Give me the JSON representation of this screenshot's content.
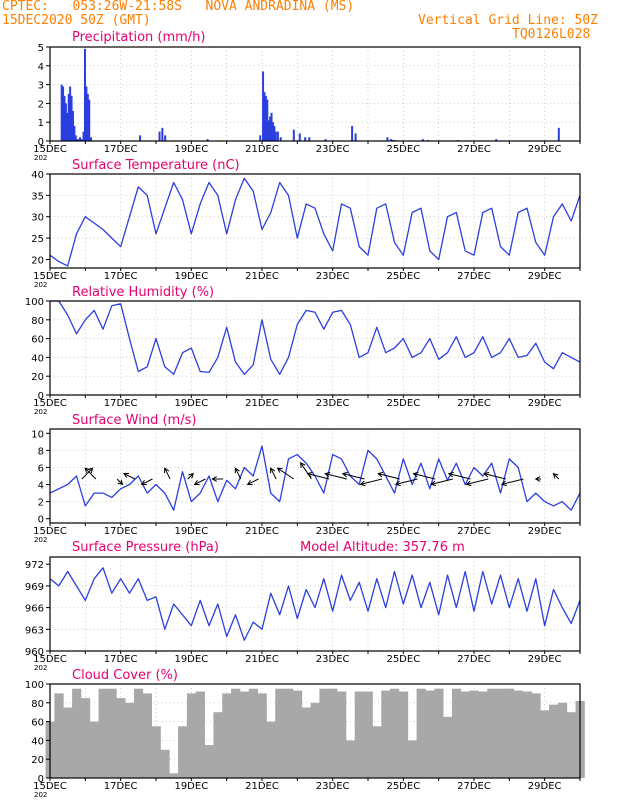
{
  "header": {
    "line1": "CPTEC:   053:26W-21:58S   NOVA ANDRADINA (MS)",
    "line2_left": "15DEC2020 50Z (GMT)",
    "line2_right": "Vertical Grid Line: 50Z",
    "line3_right": "TQ0126L028"
  },
  "colors": {
    "header": "#ff7f00",
    "title": "#e8006e",
    "series": "#2b3fe0",
    "cloud": "#a8a8a8",
    "frame": "#000000",
    "grid": "#b0b0b0"
  },
  "x_ticks": [
    "15DEC",
    "17DEC",
    "19DEC",
    "21DEC",
    "23DEC",
    "25DEC",
    "27DEC",
    "29DEC"
  ],
  "year_stub": "202",
  "panels": {
    "precip": {
      "title": "Precipitation (mm/h)"
    },
    "temp": {
      "title": "Surface Temperature (nC)"
    },
    "rh": {
      "title": "Relative Humidity (%)"
    },
    "wind": {
      "title": "Surface Wind (m/s)"
    },
    "press": {
      "title": "Surface Pressure (hPa)",
      "extra": "Model Altitude: 357.76 m"
    },
    "cloud": {
      "title": "Cloud Cover (%)"
    }
  },
  "chart_data": [
    {
      "type": "bar",
      "title": "Precipitation (mm/h)",
      "x": [
        0.33,
        0.37,
        0.41,
        0.45,
        0.49,
        0.53,
        0.57,
        0.61,
        0.65,
        0.69,
        0.73,
        0.77,
        0.81,
        0.85,
        0.89,
        0.95,
        0.99,
        1.03,
        1.07,
        1.11,
        1.16,
        2.55,
        3.1,
        3.18,
        3.26,
        4.46,
        5.95,
        6.03,
        6.07,
        6.11,
        6.15,
        6.19,
        6.23,
        6.27,
        6.31,
        6.35,
        6.39,
        6.45,
        6.53,
        6.9,
        7.07,
        7.22,
        7.34,
        7.8,
        8.55,
        8.65,
        9.55,
        9.65,
        9.7,
        9.75,
        10.55,
        10.7,
        11.55,
        12.63,
        14.4
      ],
      "values": [
        3.0,
        2.9,
        2.4,
        2.0,
        1.5,
        2.5,
        2.9,
        2.4,
        1.6,
        0.8,
        0.3,
        0.1,
        0.1,
        0.2,
        0.1,
        0.5,
        4.9,
        2.9,
        2.5,
        2.2,
        0.2,
        0.3,
        0.5,
        0.7,
        0.3,
        0.1,
        0.3,
        3.7,
        2.6,
        2.4,
        2.2,
        1.1,
        1.3,
        1.5,
        1.0,
        0.8,
        0.5,
        0.5,
        0.2,
        0.6,
        0.4,
        0.2,
        0.2,
        0.1,
        0.8,
        0.4,
        0.2,
        0.1,
        0.05,
        0.05,
        0.1,
        0.05,
        0.05,
        0.1,
        0.7
      ],
      "xlabel": "",
      "ylabel": "",
      "ylim": [
        0,
        5
      ],
      "xlim": [
        0,
        15
      ],
      "yticks": [
        0,
        1,
        2,
        3,
        4,
        5
      ]
    },
    {
      "type": "line",
      "title": "Surface Temperature (nC)",
      "x": [
        0,
        0.25,
        0.5,
        0.75,
        1,
        1.25,
        1.5,
        1.75,
        2,
        2.25,
        2.5,
        2.75,
        3,
        3.25,
        3.5,
        3.75,
        4,
        4.25,
        4.5,
        4.75,
        5,
        5.25,
        5.5,
        5.75,
        6,
        6.25,
        6.5,
        6.75,
        7,
        7.25,
        7.5,
        7.75,
        8,
        8.25,
        8.5,
        8.75,
        9,
        9.25,
        9.5,
        9.75,
        10,
        10.25,
        10.5,
        10.75,
        11,
        11.25,
        11.5,
        11.75,
        12,
        12.25,
        12.5,
        12.75,
        13,
        13.25,
        13.5,
        13.75,
        14,
        14.25,
        14.5,
        14.75,
        15
      ],
      "y": [
        21,
        19.5,
        18.5,
        26,
        30,
        28.5,
        27,
        25,
        23,
        30,
        37,
        35,
        26,
        32,
        38,
        34,
        26,
        33,
        38,
        35,
        26,
        34,
        39,
        36,
        27,
        31,
        38,
        35,
        25,
        33,
        32,
        26,
        22,
        33,
        32,
        23,
        21,
        32,
        33,
        24,
        21,
        31,
        32,
        22,
        20,
        30,
        31,
        22,
        21,
        31,
        32,
        23,
        21,
        31,
        32,
        24,
        21,
        30,
        33,
        29,
        35
      ],
      "xlabel": "",
      "ylabel": "",
      "ylim": [
        18,
        40
      ],
      "xlim": [
        0,
        15
      ],
      "yticks": [
        20,
        25,
        30,
        35,
        40
      ]
    },
    {
      "type": "line",
      "title": "Relative Humidity (%)",
      "x": [
        0,
        0.25,
        0.5,
        0.75,
        1,
        1.25,
        1.5,
        1.75,
        2,
        2.25,
        2.5,
        2.75,
        3,
        3.25,
        3.5,
        3.75,
        4,
        4.25,
        4.5,
        4.75,
        5,
        5.25,
        5.5,
        5.75,
        6,
        6.25,
        6.5,
        6.75,
        7,
        7.25,
        7.5,
        7.75,
        8,
        8.25,
        8.5,
        8.75,
        9,
        9.25,
        9.5,
        9.75,
        10,
        10.25,
        10.5,
        10.75,
        11,
        11.25,
        11.5,
        11.75,
        12,
        12.25,
        12.5,
        12.75,
        13,
        13.25,
        13.5,
        13.75,
        14,
        14.25,
        14.5,
        14.75,
        15
      ],
      "y": [
        100,
        100,
        85,
        65,
        80,
        90,
        70,
        95,
        97,
        60,
        25,
        30,
        60,
        30,
        22,
        45,
        50,
        25,
        24,
        40,
        72,
        35,
        22,
        32,
        80,
        38,
        22,
        40,
        75,
        90,
        88,
        70,
        88,
        90,
        75,
        40,
        45,
        72,
        45,
        50,
        60,
        40,
        45,
        60,
        38,
        45,
        62,
        40,
        45,
        62,
        40,
        45,
        60,
        40,
        42,
        55,
        35,
        28,
        45,
        40,
        35
      ],
      "xlabel": "",
      "ylabel": "",
      "ylim": [
        0,
        100
      ],
      "xlim": [
        0,
        15
      ],
      "yticks": [
        0,
        20,
        40,
        60,
        80,
        100
      ]
    },
    {
      "type": "line",
      "title": "Surface Wind (m/s)",
      "x": [
        0,
        0.25,
        0.5,
        0.75,
        1,
        1.25,
        1.5,
        1.75,
        2,
        2.25,
        2.5,
        2.75,
        3,
        3.25,
        3.5,
        3.75,
        4,
        4.25,
        4.5,
        4.75,
        5,
        5.25,
        5.5,
        5.75,
        6,
        6.25,
        6.5,
        6.75,
        7,
        7.25,
        7.5,
        7.75,
        8,
        8.25,
        8.5,
        8.75,
        9,
        9.25,
        9.5,
        9.75,
        10,
        10.25,
        10.5,
        10.75,
        11,
        11.25,
        11.5,
        11.75,
        12,
        12.25,
        12.5,
        12.75,
        13,
        13.25,
        13.5,
        13.75,
        14,
        14.25,
        14.5,
        14.75,
        15
      ],
      "y": [
        3,
        3.5,
        4,
        5,
        1.5,
        3,
        3,
        2.5,
        3.5,
        4,
        5,
        3,
        4,
        3,
        1,
        5.5,
        2,
        3,
        5,
        2,
        4.5,
        3.5,
        6,
        5,
        8.5,
        3,
        2,
        7,
        7.5,
        6.5,
        5,
        3,
        7.5,
        7,
        5,
        4,
        8,
        7,
        5,
        3,
        7,
        4,
        6.5,
        3.5,
        7,
        4.5,
        6.5,
        4,
        6,
        5,
        6.5,
        3,
        7,
        6,
        2,
        3,
        2,
        1.5,
        2,
        1,
        3
      ],
      "xlabel": "",
      "ylabel": "",
      "ylim": [
        -0.5,
        10.5
      ],
      "xlim": [
        0,
        15
      ],
      "yticks": [
        0,
        2,
        4,
        6,
        8,
        10
      ]
    },
    {
      "type": "line",
      "title": "Surface Pressure (hPa)",
      "x": [
        0,
        0.25,
        0.5,
        0.75,
        1,
        1.25,
        1.5,
        1.75,
        2,
        2.25,
        2.5,
        2.75,
        3,
        3.25,
        3.5,
        3.75,
        4,
        4.25,
        4.5,
        4.75,
        5,
        5.25,
        5.5,
        5.75,
        6,
        6.25,
        6.5,
        6.75,
        7,
        7.25,
        7.5,
        7.75,
        8,
        8.25,
        8.5,
        8.75,
        9,
        9.25,
        9.5,
        9.75,
        10,
        10.25,
        10.5,
        10.75,
        11,
        11.25,
        11.5,
        11.75,
        12,
        12.25,
        12.5,
        12.75,
        13,
        13.25,
        13.5,
        13.75,
        14,
        14.25,
        14.5,
        14.75,
        15
      ],
      "y": [
        970,
        969,
        971,
        969,
        967,
        970,
        971.5,
        968,
        970,
        968,
        970,
        967,
        967.5,
        963,
        966.5,
        965,
        963.5,
        967,
        963.5,
        966.5,
        962,
        965,
        961.5,
        964,
        963,
        968,
        965,
        969,
        964.5,
        968.5,
        966,
        970,
        965.5,
        970.5,
        967,
        969.5,
        965.5,
        970,
        966,
        971,
        966.5,
        970.5,
        966,
        969.5,
        965,
        970.5,
        966,
        971,
        965.5,
        971,
        966.5,
        970.5,
        966,
        970,
        965.5,
        970,
        963.5,
        968.5,
        966,
        963.8,
        967
      ],
      "xlabel": "",
      "ylabel": "",
      "ylim": [
        960,
        973
      ],
      "xlim": [
        0,
        15
      ],
      "yticks": [
        960,
        963,
        966,
        969,
        972
      ]
    },
    {
      "type": "bar",
      "title": "Cloud Cover (%)",
      "x": [
        0,
        0.25,
        0.5,
        0.75,
        1,
        1.25,
        1.5,
        1.75,
        2,
        2.25,
        2.5,
        2.75,
        3,
        3.25,
        3.5,
        3.75,
        4,
        4.25,
        4.5,
        4.75,
        5,
        5.25,
        5.5,
        5.75,
        6,
        6.25,
        6.5,
        6.75,
        7,
        7.25,
        7.5,
        7.75,
        8,
        8.25,
        8.5,
        8.75,
        9,
        9.25,
        9.5,
        9.75,
        10,
        10.25,
        10.5,
        10.75,
        11,
        11.25,
        11.5,
        11.75,
        12,
        12.25,
        12.5,
        12.75,
        13,
        13.25,
        13.5,
        13.75,
        14,
        14.25,
        14.5,
        14.75,
        15
      ],
      "values": [
        60,
        90,
        75,
        95,
        85,
        60,
        95,
        95,
        85,
        80,
        95,
        90,
        55,
        30,
        5,
        55,
        90,
        92,
        35,
        70,
        90,
        95,
        92,
        95,
        90,
        60,
        95,
        95,
        93,
        75,
        80,
        95,
        95,
        92,
        40,
        92,
        92,
        55,
        93,
        95,
        92,
        40,
        95,
        93,
        95,
        65,
        95,
        92,
        93,
        92,
        95,
        95,
        95,
        93,
        92,
        90,
        72,
        78,
        80,
        70,
        82
      ],
      "xlabel": "",
      "ylabel": "",
      "ylim": [
        0,
        100
      ],
      "xlim": [
        0,
        15
      ],
      "yticks": [
        0,
        20,
        40,
        60,
        80,
        100
      ]
    }
  ],
  "wind_vectors": {
    "x": [
      0.9,
      1.3,
      1.9,
      2.4,
      2.9,
      3.4,
      3.9,
      4.4,
      4.9,
      5.4,
      5.9,
      6.4,
      6.9,
      7.4,
      7.9,
      8.4,
      8.9,
      9.4,
      9.9,
      10.4,
      10.9,
      11.4,
      11.9,
      12.4,
      12.9,
      13.4,
      13.9,
      14.4
    ],
    "u": [
      0.6,
      -0.6,
      0.3,
      -0.6,
      -0.6,
      -0.3,
      0.3,
      -0.6,
      -0.6,
      -0.3,
      -0.6,
      -0.3,
      -0.9,
      -0.6,
      -1.2,
      -1.2,
      -1.2,
      -1.2,
      -1.2,
      -1.2,
      -1.2,
      -1.2,
      -1.2,
      -1.2,
      -1.2,
      -1.2,
      -0.3,
      -0.3
    ],
    "v": [
      0.6,
      0.6,
      -0.3,
      0.3,
      -0.3,
      0.6,
      0.3,
      -0.3,
      0.0,
      0.6,
      -0.3,
      0.6,
      0.6,
      0.9,
      0.3,
      0.3,
      0.3,
      -0.3,
      0.3,
      -0.3,
      0.3,
      -0.3,
      0.3,
      -0.3,
      0.3,
      -0.3,
      0.0,
      0.3
    ]
  }
}
